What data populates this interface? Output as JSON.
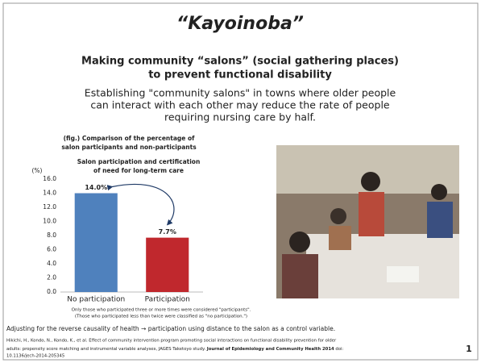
{
  "title": "“Kayoinoba”",
  "subtitle": [
    "Making community “salons” (social gathering places)",
    "to prevent functional disability"
  ],
  "body": [
    "Establishing \"community salons\" in towns where older people",
    "can interact with each other may reduce the rate of people",
    "requiring nursing care by half."
  ],
  "figure_caption": [
    "(fig.) Comparison of the percentage of",
    "salon participants and non-participants"
  ],
  "chart_data": {
    "type": "bar",
    "title": [
      "Salon participation and certification",
      "of need for long-term care"
    ],
    "y_unit": "(%)",
    "categories": [
      "No participation",
      "Participation"
    ],
    "values": [
      14.0,
      7.7
    ],
    "value_labels": [
      "14.0%",
      "7.7%"
    ],
    "colors": [
      "#4f81bd",
      "#c0282d"
    ],
    "ylim": [
      0,
      16
    ],
    "yticks": [
      {
        "value": 0,
        "label": "0.0"
      },
      {
        "value": 2,
        "label": "2.0"
      },
      {
        "value": 4,
        "label": "4.0"
      },
      {
        "value": 6,
        "label": "6.0"
      },
      {
        "value": 8,
        "label": "8.0"
      },
      {
        "value": 10,
        "label": "10.0"
      },
      {
        "value": 12,
        "label": "12.0"
      },
      {
        "value": 14,
        "label": "14.0"
      },
      {
        "value": 16,
        "label": "16.0"
      }
    ],
    "grid": false
  },
  "notes": [
    "Only those who participated three or more times were considered \"participants\".",
    "(Those who participated less than twice were classified as \"no participation.\")"
  ],
  "adjustment": "Adjusting for the reverse causality of health → participation using distance to the salon as a control variable.",
  "citation": [
    "Hikichi, H., Kondo, N., Kondo, K., et al. Effect of community intervention program promoting social interactions on functional disability prevention for older",
    "adults: propensity score matching and instrumental variable analyses, JAGES Taketoyo study. ",
    "Journal of Epidemiology and Community Health 2014",
    "  doi:",
    "10.1136/jech-2014-205345"
  ],
  "page_number": "1"
}
